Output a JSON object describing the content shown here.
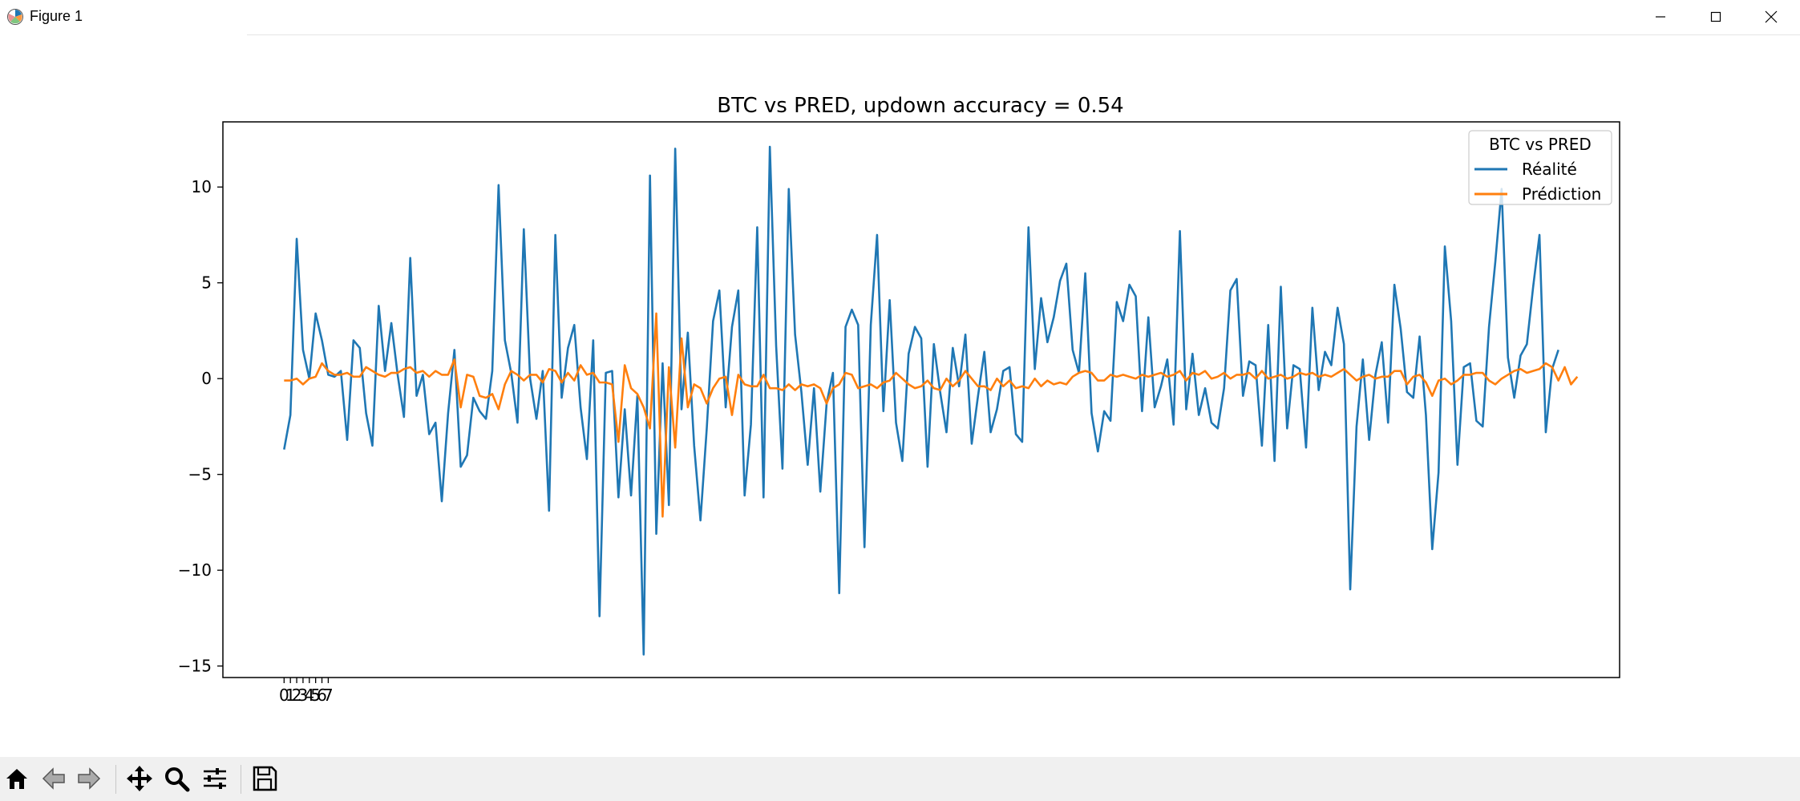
{
  "window": {
    "title": "Figure 1",
    "icon": "matplotlib-figure-icon",
    "controls": [
      "minimize-icon",
      "maximize-icon",
      "close-icon"
    ]
  },
  "toolbar": {
    "buttons": [
      "home-icon",
      "back-arrow-icon",
      "forward-arrow-icon",
      "pan-icon",
      "zoom-icon",
      "configure-subplots-icon",
      "save-icon"
    ]
  },
  "colors": {
    "series_realite": "#1f77b4",
    "series_prediction": "#ff7f0e",
    "toolbar_bg": "#f0f0f0"
  },
  "chart_data": {
    "type": "line",
    "title": "BTC vs PRED, updown accuracy = 0.54",
    "xlabel": "",
    "ylabel": "",
    "xlim": [
      -9.7,
      211.7
    ],
    "ylim": [
      -15.6,
      13.4
    ],
    "yticks": [
      -15,
      -10,
      -5,
      0,
      5,
      10
    ],
    "xticks": [
      0,
      1,
      2,
      3,
      4,
      5,
      6,
      7
    ],
    "grid": false,
    "legend": {
      "title": "BTC vs PRED",
      "position": "top-right"
    },
    "series": [
      {
        "name": "Réalité",
        "values": [
          -3.7,
          -1.9,
          7.3,
          1.5,
          0.0,
          3.4,
          2.0,
          0.2,
          0.1,
          0.4,
          -3.2,
          2.0,
          1.6,
          -1.8,
          -3.5,
          3.8,
          0.4,
          2.9,
          0.2,
          -2.0,
          6.3,
          -0.9,
          0.2,
          -2.9,
          -2.3,
          -6.4,
          -1.8,
          1.5,
          -4.6,
          -4.0,
          -1.0,
          -1.7,
          -2.1,
          0.4,
          10.1,
          2.0,
          0.3,
          -2.3,
          7.8,
          0.0,
          -2.1,
          0.4,
          -6.9,
          7.5,
          -1.0,
          1.6,
          2.8,
          -1.5,
          -4.2,
          2.0,
          -12.4,
          0.3,
          0.4,
          -6.2,
          -1.6,
          -6.1,
          -0.9,
          -14.4,
          10.6,
          -8.1,
          0.8,
          -6.6,
          12.0,
          -1.6,
          2.4,
          -3.5,
          -7.4,
          -2.6,
          3.0,
          4.6,
          -1.5,
          2.7,
          4.6,
          -6.1,
          -2.4,
          7.9,
          -6.2,
          12.1,
          1.7,
          -4.7,
          9.9,
          2.3,
          -0.7,
          -4.5,
          -0.5,
          -5.9,
          -1.3,
          0.3,
          -11.2,
          2.7,
          3.6,
          2.8,
          -8.8,
          2.8,
          7.5,
          -1.7,
          4.1,
          -2.3,
          -4.3,
          1.3,
          2.7,
          2.1,
          -4.6,
          1.8,
          -0.7,
          -2.8,
          1.6,
          -0.4,
          2.3,
          -3.4,
          -0.9,
          1.4,
          -2.8,
          -1.6,
          0.4,
          0.6,
          -2.9,
          -3.3,
          7.9,
          0.5,
          4.2,
          1.9,
          3.2,
          5.1,
          6.0,
          1.5,
          0.3,
          5.5,
          -1.8,
          -3.8,
          -1.7,
          -2.2,
          4.0,
          3.0,
          4.9,
          4.3,
          -1.7,
          3.2,
          -1.5,
          -0.4,
          1.0,
          -2.4,
          7.7,
          -1.6,
          1.3,
          -1.9,
          -0.5,
          -2.3,
          -2.6,
          -0.5,
          4.6,
          5.2,
          -0.9,
          0.9,
          0.7,
          -3.5,
          2.8,
          -4.3,
          4.8,
          -2.6,
          0.7,
          0.5,
          -3.6,
          3.7,
          -0.6,
          1.4,
          0.7,
          3.7,
          1.8,
          -11.0,
          -2.5,
          1.0,
          -3.2,
          0.2,
          1.9,
          -2.3,
          4.9,
          2.6,
          -0.7,
          -1.0,
          2.2,
          -1.9,
          -8.9,
          -4.9,
          6.9,
          3.0,
          -4.5,
          0.6,
          0.8,
          -2.2,
          -2.5,
          2.7,
          6.1,
          9.9,
          1.1,
          -1.0,
          1.2,
          1.8,
          4.8,
          7.5,
          -2.8,
          0.5,
          1.5
        ],
        "color": "#1f77b4"
      },
      {
        "name": "Prédiction",
        "values": [
          -0.1,
          -0.1,
          0.0,
          -0.3,
          0.0,
          0.1,
          0.8,
          0.4,
          0.2,
          0.2,
          0.3,
          0.1,
          0.1,
          0.6,
          0.4,
          0.2,
          0.1,
          0.3,
          0.3,
          0.5,
          0.6,
          0.3,
          0.4,
          0.1,
          0.4,
          0.2,
          0.2,
          1.0,
          -1.5,
          0.2,
          0.1,
          -0.9,
          -1.0,
          -0.8,
          -1.6,
          -0.3,
          0.4,
          0.2,
          -0.1,
          0.2,
          0.2,
          -0.2,
          0.5,
          0.4,
          -0.2,
          0.3,
          -0.1,
          0.7,
          0.2,
          0.3,
          -0.2,
          -0.2,
          -0.3,
          -3.3,
          0.7,
          -0.5,
          -0.8,
          -1.5,
          -2.6,
          3.4,
          -7.2,
          0.6,
          -3.6,
          2.1,
          -1.5,
          -0.3,
          -0.5,
          -1.3,
          -0.5,
          0.0,
          0.1,
          -1.9,
          0.2,
          -0.3,
          -0.4,
          -0.4,
          0.2,
          -0.5,
          -0.5,
          -0.6,
          -0.3,
          -0.6,
          -0.3,
          -0.4,
          -0.3,
          -0.5,
          -1.3,
          -0.5,
          -0.3,
          0.3,
          0.2,
          -0.5,
          -0.4,
          -0.3,
          -0.5,
          -0.2,
          -0.1,
          0.3,
          0.0,
          -0.3,
          -0.5,
          -0.4,
          -0.1,
          -0.5,
          -0.6,
          0.0,
          -0.4,
          -0.1,
          0.4,
          0.0,
          -0.4,
          -0.4,
          -0.6,
          0.0,
          -0.4,
          -0.1,
          -0.5,
          -0.4,
          -0.5,
          0.0,
          -0.4,
          -0.1,
          -0.3,
          -0.2,
          -0.3,
          0.1,
          0.3,
          0.4,
          0.3,
          -0.1,
          -0.1,
          0.2,
          0.1,
          0.2,
          0.1,
          0.0,
          0.2,
          0.1,
          0.2,
          0.3,
          0.1,
          0.2,
          0.4,
          -0.1,
          0.3,
          0.2,
          0.4,
          0.0,
          0.1,
          0.3,
          0.0,
          0.2,
          0.2,
          0.3,
          0.0,
          0.4,
          0.0,
          0.1,
          0.2,
          0.0,
          0.1,
          0.3,
          0.2,
          0.3,
          0.1,
          0.2,
          0.1,
          0.3,
          0.5,
          0.2,
          -0.1,
          0.1,
          0.2,
          0.0,
          0.1,
          0.1,
          0.4,
          0.4,
          -0.3,
          0.1,
          0.2,
          -0.2,
          -0.9,
          -0.1,
          0.0,
          -0.3,
          -0.1,
          0.2,
          0.2,
          0.3,
          0.3,
          -0.1,
          -0.3,
          0.0,
          0.2,
          0.4,
          0.5,
          0.3,
          0.4,
          0.5,
          0.8,
          0.6,
          -0.1,
          0.6,
          -0.3,
          0.1
        ],
        "color": "#ff7f0e"
      }
    ]
  }
}
